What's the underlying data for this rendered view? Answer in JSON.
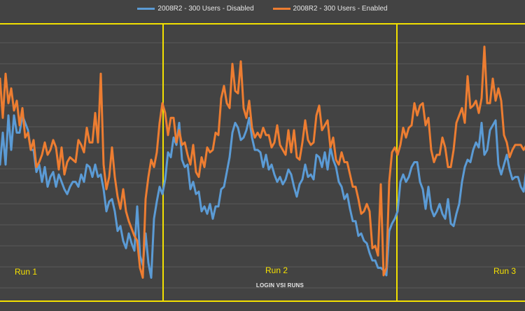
{
  "chart_data": {
    "type": "line",
    "xlabel": "LOGIN VSI RUNS",
    "ylabel": "",
    "grid": true,
    "legend_position": "top-center",
    "ylim": [
      0,
      100
    ],
    "x": [
      0,
      1,
      2,
      3,
      4,
      5,
      6,
      7,
      8,
      9,
      10,
      11,
      12,
      13,
      14,
      15,
      16,
      17,
      18,
      19,
      20,
      21,
      22,
      23,
      24,
      25,
      26,
      27,
      28,
      29,
      30,
      31,
      32,
      33,
      34,
      35,
      36,
      37,
      38,
      39,
      40,
      41,
      42,
      43,
      44,
      45,
      46,
      47,
      48,
      49,
      50,
      51,
      52,
      53,
      54,
      55,
      56,
      57,
      58,
      59,
      60,
      61,
      62,
      63,
      64,
      65,
      66,
      67,
      68,
      69,
      70,
      71,
      72,
      73,
      74,
      75,
      76,
      77,
      78,
      79,
      80,
      81,
      82,
      83,
      84,
      85,
      86,
      87,
      88,
      89,
      90,
      91,
      92,
      93,
      94,
      95,
      96,
      97,
      98,
      99,
      100,
      101,
      102,
      103,
      104,
      105,
      106,
      107,
      108,
      109,
      110,
      111,
      112,
      113,
      114,
      115,
      116,
      117,
      118,
      119,
      120,
      121,
      122,
      123,
      124,
      125,
      126,
      127,
      128,
      129,
      130,
      131,
      132,
      133,
      134,
      135,
      136,
      137,
      138,
      139,
      140,
      141,
      142,
      143,
      144,
      145,
      146,
      147,
      148,
      149,
      150,
      151,
      152,
      153,
      154,
      155,
      156,
      157,
      158,
      159,
      160,
      161,
      162,
      163,
      164,
      165,
      166,
      167,
      168,
      169,
      170,
      171,
      172,
      173,
      174,
      175,
      176,
      177,
      178,
      179,
      180,
      181,
      182,
      183,
      184,
      185,
      186,
      187,
      188
    ],
    "series": [
      {
        "name": "2008R2 - 300 Users - Disabled",
        "color": "#5b9bd5",
        "values": [
          47,
          60,
          47,
          67,
          53,
          67,
          60,
          60,
          67,
          64,
          61,
          53,
          53,
          44,
          47,
          40,
          46,
          38,
          42,
          44,
          38,
          43,
          40,
          37,
          35,
          38,
          40,
          40,
          38,
          43,
          40,
          47,
          46,
          42,
          47,
          42,
          43,
          37,
          28,
          32,
          33,
          28,
          20,
          22,
          16,
          13,
          19,
          15,
          12,
          30,
          10,
          6,
          19,
          7,
          1,
          25,
          32,
          38,
          35,
          41,
          52,
          50,
          58,
          55,
          64,
          49,
          46,
          47,
          37,
          40,
          35,
          36,
          28,
          30,
          27,
          31,
          25,
          30,
          30,
          37,
          38,
          44,
          50,
          60,
          64,
          62,
          57,
          58,
          61,
          66,
          58,
          53,
          53,
          52,
          46,
          51,
          45,
          47,
          43,
          40,
          42,
          39,
          41,
          45,
          43,
          38,
          34,
          39,
          41,
          47,
          42,
          43,
          41,
          51,
          50,
          46,
          52,
          45,
          54,
          49,
          46,
          40,
          38,
          33,
          35,
          29,
          24,
          24,
          18,
          19,
          16,
          15,
          11,
          8,
          8,
          5,
          5,
          4,
          2,
          20,
          23,
          25,
          28,
          40,
          43,
          40,
          42,
          46,
          48,
          48,
          40,
          37,
          29,
          38,
          29,
          26,
          28,
          31,
          27,
          25,
          33,
          23,
          22,
          27,
          31,
          40,
          46,
          49,
          48,
          53,
          56,
          54,
          64,
          51,
          53,
          61,
          63,
          65,
          47,
          43,
          47,
          51,
          45,
          41,
          42,
          42,
          38,
          36,
          45
        ]
      },
      {
        "name": "2008R2 - 300 Users - Enabled",
        "color": "#ed7d31",
        "values": [
          82,
          66,
          84,
          72,
          78,
          69,
          73,
          63,
          70,
          58,
          60,
          53,
          57,
          46,
          48,
          51,
          56,
          51,
          53,
          57,
          54,
          45,
          54,
          43,
          48,
          50,
          49,
          48,
          57,
          55,
          52,
          62,
          56,
          56,
          68,
          56,
          84,
          47,
          37,
          42,
          54,
          42,
          34,
          29,
          37,
          28,
          24,
          21,
          18,
          16,
          5,
          1,
          33,
          42,
          49,
          46,
          52,
          64,
          72,
          68,
          59,
          66,
          66,
          56,
          61,
          55,
          56,
          51,
          47,
          55,
          44,
          42,
          50,
          46,
          54,
          52,
          53,
          60,
          59,
          74,
          79,
          72,
          70,
          88,
          77,
          76,
          89,
          70,
          66,
          73,
          62,
          58,
          60,
          58,
          62,
          59,
          59,
          54,
          56,
          63,
          55,
          53,
          51,
          61,
          52,
          61,
          50,
          49,
          56,
          65,
          57,
          55,
          56,
          67,
          71,
          61,
          63,
          65,
          54,
          58,
          49,
          47,
          52,
          48,
          48,
          43,
          38,
          38,
          33,
          27,
          28,
          31,
          28,
          13,
          14,
          10,
          39,
          2,
          5,
          40,
          52,
          54,
          51,
          55,
          62,
          58,
          62,
          63,
          72,
          67,
          71,
          72,
          63,
          66,
          53,
          48,
          51,
          51,
          58,
          54,
          46,
          46,
          53,
          64,
          67,
          70,
          64,
          83,
          70,
          71,
          73,
          68,
          74,
          95,
          72,
          72,
          82,
          73,
          78,
          73,
          59,
          56,
          50,
          53,
          55,
          55,
          55,
          53,
          55
        ]
      }
    ],
    "annotations": [
      {
        "label": "Run 1"
      },
      {
        "label": "Run 2"
      },
      {
        "label": "Run 3"
      }
    ],
    "colors": {
      "background": "#434343",
      "gridline": "#5a5a5a",
      "run_divider": "#f2e000",
      "text": "#e6e6e6",
      "run_label": "#f7e200"
    }
  }
}
